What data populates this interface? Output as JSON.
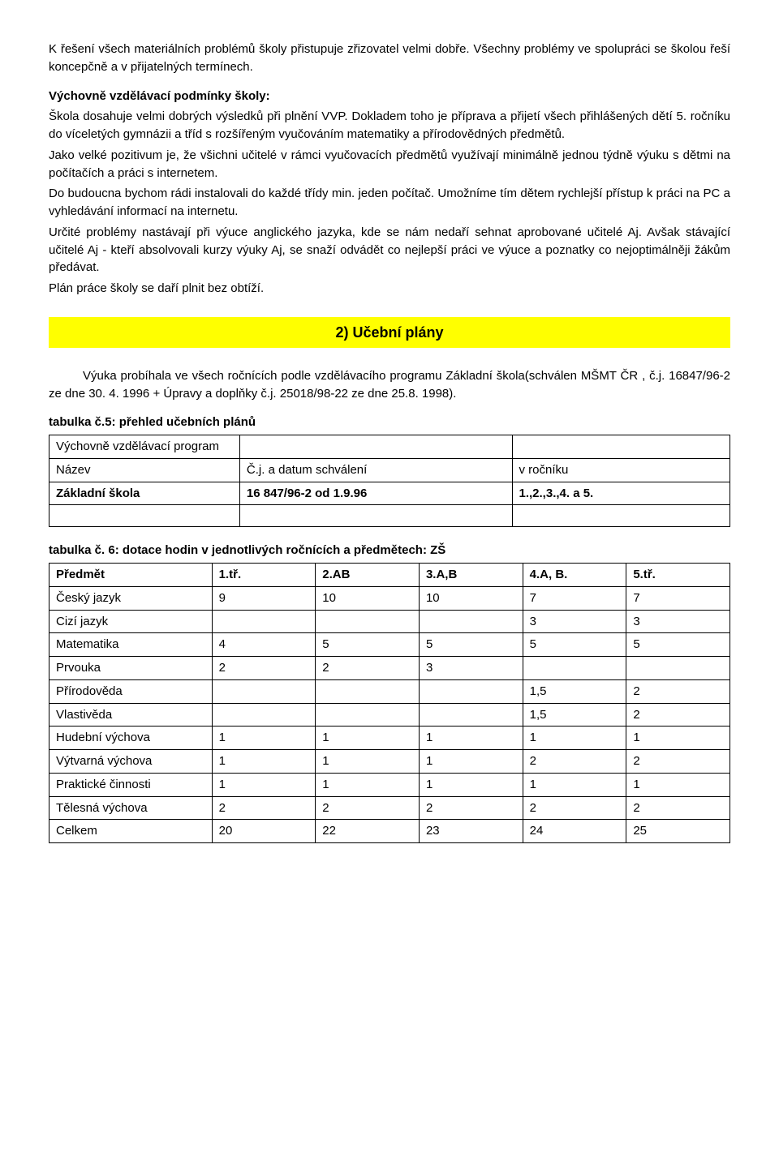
{
  "intro": {
    "p1": "K řešení všech materiálních problémů školy přistupuje zřizovatel velmi dobře. Všechny problémy ve spolupráci se školou řeší koncepčně a v přijatelných termínech."
  },
  "conditions": {
    "heading": "Výchovně vzdělávací podmínky školy:",
    "p1": "Škola dosahuje velmi dobrých výsledků při plnění VVP. Dokladem toho je příprava a přijetí všech přihlášených dětí 5. ročníku do víceletých gymnázii a tříd s rozšířeným vyučováním matematiky a přírodovědných předmětů.",
    "p2": "Jako velké pozitivum je, že všichni učitelé v rámci vyučovacích předmětů využívají minimálně jednou týdně výuku s dětmi na počítačích a práci s internetem.",
    "p3": "Do budoucna bychom rádi instalovali do každé třídy min. jeden počítač. Umožníme tím dětem rychlejší přístup k práci na PC a vyhledávání informací na internetu.",
    "p4": "Určité problémy nastávají při výuce anglického jazyka, kde se nám nedaří sehnat aprobované učitelé Aj. Avšak stávající učitelé Aj - kteří absolvovali kurzy výuky Aj, se snaží odvádět co nejlepší práci ve výuce a poznatky co nejoptimálněji žákům předávat.",
    "p5": "Plán práce školy se daří plnit bez obtíží."
  },
  "section2": {
    "title": "2) Učební plány",
    "p1": "Výuka probíhala ve všech ročnících podle vzdělávacího programu Základní škola(schválen MŠMT ČR , č.j. 16847/96-2 ze dne 30. 4. 1996 + Úpravy a doplňky č.j. 25018/98-22 ze dne 25.8. 1998)."
  },
  "table5": {
    "caption": "tabulka č.5: přehled učebních plánů",
    "rows": [
      [
        "Výchovně vzdělávací program",
        "",
        ""
      ],
      [
        "Název",
        "Č.j. a datum schválení",
        "v ročníku"
      ],
      [
        "Základní škola",
        "16 847/96-2 od 1.9.96",
        "1.,2.,3.,4. a 5."
      ],
      [
        "",
        "",
        ""
      ]
    ],
    "bold_row_index": 2
  },
  "table6": {
    "caption": "tabulka č. 6: dotace hodin v jednotlivých ročnících a předmětech: ZŠ",
    "headers": [
      "Předmět",
      "1.tř.",
      "2.AB",
      "3.A,B",
      "4.A, B.",
      "5.tř."
    ],
    "rows": [
      [
        "Český jazyk",
        "9",
        "10",
        "10",
        "7",
        "7"
      ],
      [
        "Cizí jazyk",
        "",
        "",
        "",
        "3",
        "3"
      ],
      [
        "Matematika",
        "4",
        "5",
        "5",
        "5",
        "5"
      ],
      [
        "Prvouka",
        "2",
        "2",
        "3",
        "",
        ""
      ],
      [
        "Přírodověda",
        "",
        "",
        "",
        "1,5",
        "2"
      ],
      [
        "Vlastivěda",
        "",
        "",
        "",
        "1,5",
        "2"
      ],
      [
        "Hudební výchova",
        "1",
        "1",
        "1",
        "1",
        "1"
      ],
      [
        "Výtvarná výchova",
        "1",
        "1",
        "1",
        "2",
        "2"
      ],
      [
        "Praktické činnosti",
        "1",
        "1",
        "1",
        "1",
        "1"
      ],
      [
        "Tělesná výchova",
        "2",
        "2",
        "2",
        "2",
        "2"
      ],
      [
        "Celkem",
        "20",
        "22",
        "23",
        "24",
        "25"
      ]
    ]
  }
}
